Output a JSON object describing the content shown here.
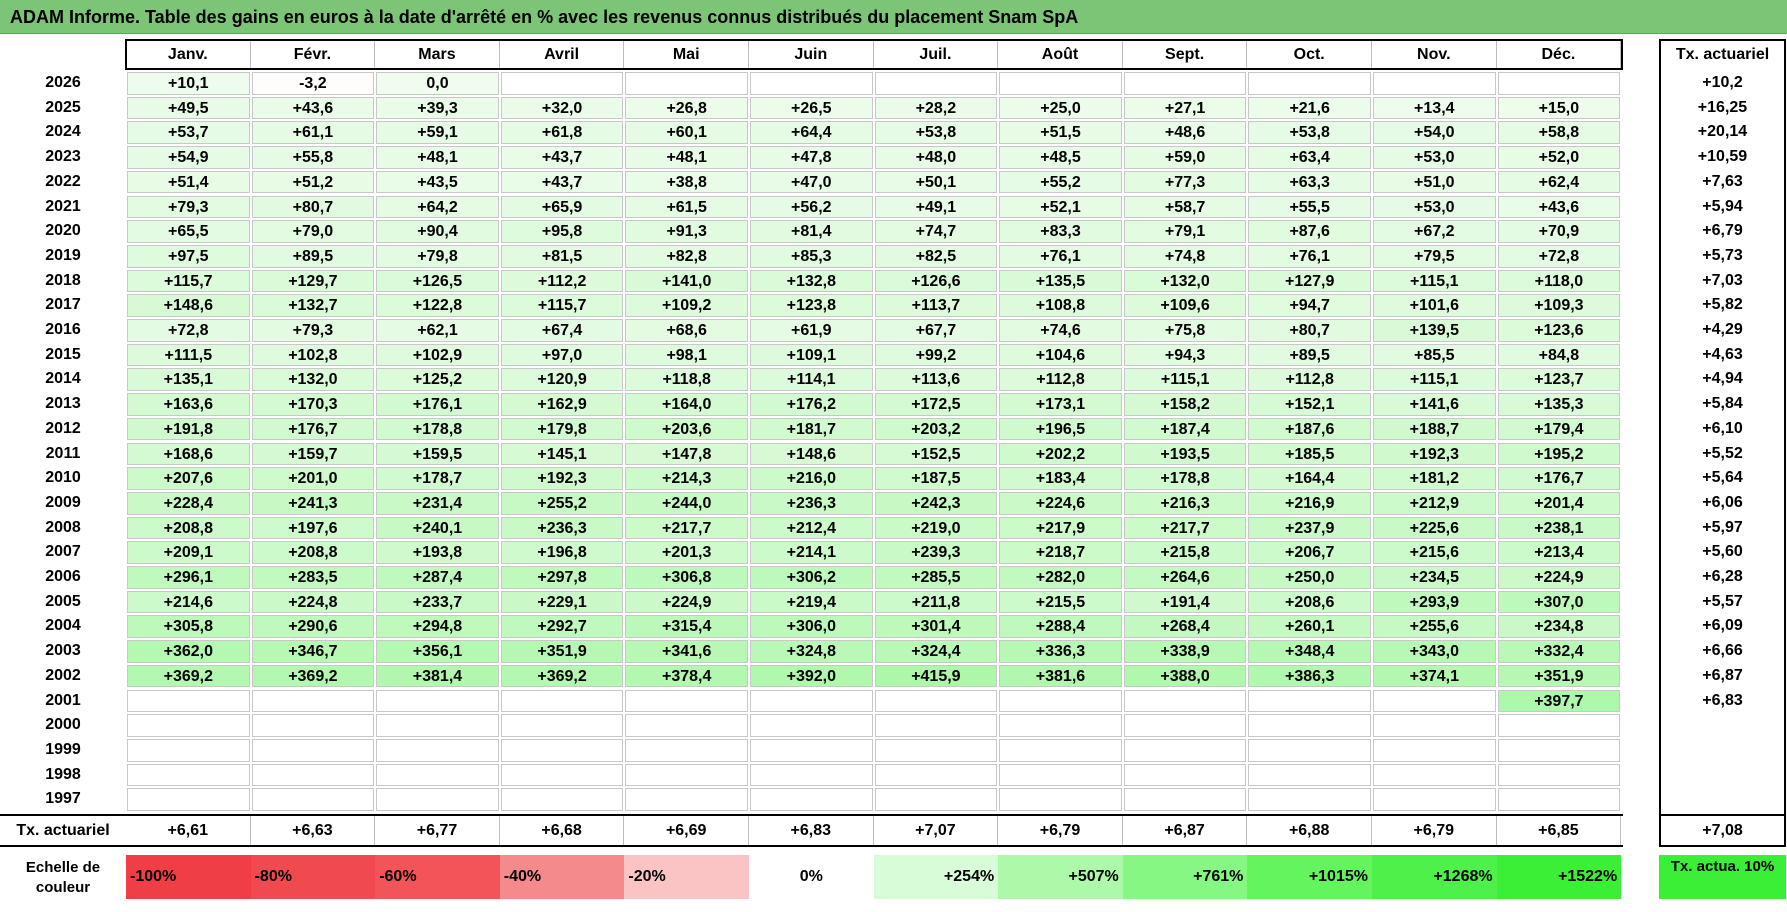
{
  "title": "ADAM Informe. Table des gains en euros à la date d'arrêté en % avec les revenus connus distribués du placement Snam SpA",
  "chart_data": {
    "type": "table",
    "months": [
      "Janv.",
      "Févr.",
      "Mars",
      "Avril",
      "Mai",
      "Juin",
      "Juil.",
      "Août",
      "Sept.",
      "Oct.",
      "Nov.",
      "Déc."
    ],
    "rate_header": "Tx. actuariel",
    "rows": [
      {
        "year": "2026",
        "values": [
          "+10,1",
          "-3,2",
          "0,0",
          "",
          "",
          "",
          "",
          "",
          "",
          "",
          "",
          ""
        ],
        "rate": "+10,2"
      },
      {
        "year": "2025",
        "values": [
          "+49,5",
          "+43,6",
          "+39,3",
          "+32,0",
          "+26,8",
          "+26,5",
          "+28,2",
          "+25,0",
          "+27,1",
          "+21,6",
          "+13,4",
          "+15,0"
        ],
        "rate": "+16,25"
      },
      {
        "year": "2024",
        "values": [
          "+53,7",
          "+61,1",
          "+59,1",
          "+61,8",
          "+60,1",
          "+64,4",
          "+53,8",
          "+51,5",
          "+48,6",
          "+53,8",
          "+54,0",
          "+58,8"
        ],
        "rate": "+20,14"
      },
      {
        "year": "2023",
        "values": [
          "+54,9",
          "+55,8",
          "+48,1",
          "+43,7",
          "+48,1",
          "+47,8",
          "+48,0",
          "+48,5",
          "+59,0",
          "+63,4",
          "+53,0",
          "+52,0"
        ],
        "rate": "+10,59"
      },
      {
        "year": "2022",
        "values": [
          "+51,4",
          "+51,2",
          "+43,5",
          "+43,7",
          "+38,8",
          "+47,0",
          "+50,1",
          "+55,2",
          "+77,3",
          "+63,3",
          "+51,0",
          "+62,4"
        ],
        "rate": "+7,63"
      },
      {
        "year": "2021",
        "values": [
          "+79,3",
          "+80,7",
          "+64,2",
          "+65,9",
          "+61,5",
          "+56,2",
          "+49,1",
          "+52,1",
          "+58,7",
          "+55,5",
          "+53,0",
          "+43,6"
        ],
        "rate": "+5,94"
      },
      {
        "year": "2020",
        "values": [
          "+65,5",
          "+79,0",
          "+90,4",
          "+95,8",
          "+91,3",
          "+81,4",
          "+74,7",
          "+83,3",
          "+79,1",
          "+87,6",
          "+67,2",
          "+70,9"
        ],
        "rate": "+6,79"
      },
      {
        "year": "2019",
        "values": [
          "+97,5",
          "+89,5",
          "+79,8",
          "+81,5",
          "+82,8",
          "+85,3",
          "+82,5",
          "+76,1",
          "+74,8",
          "+76,1",
          "+79,5",
          "+72,8"
        ],
        "rate": "+5,73"
      },
      {
        "year": "2018",
        "values": [
          "+115,7",
          "+129,7",
          "+126,5",
          "+112,2",
          "+141,0",
          "+132,8",
          "+126,6",
          "+135,5",
          "+132,0",
          "+127,9",
          "+115,1",
          "+118,0"
        ],
        "rate": "+7,03"
      },
      {
        "year": "2017",
        "values": [
          "+148,6",
          "+132,7",
          "+122,8",
          "+115,7",
          "+109,2",
          "+123,8",
          "+113,7",
          "+108,8",
          "+109,6",
          "+94,7",
          "+101,6",
          "+109,3"
        ],
        "rate": "+5,82"
      },
      {
        "year": "2016",
        "values": [
          "+72,8",
          "+79,3",
          "+62,1",
          "+67,4",
          "+68,6",
          "+61,9",
          "+67,7",
          "+74,6",
          "+75,8",
          "+80,7",
          "+139,5",
          "+123,6"
        ],
        "rate": "+4,29"
      },
      {
        "year": "2015",
        "values": [
          "+111,5",
          "+102,8",
          "+102,9",
          "+97,0",
          "+98,1",
          "+109,1",
          "+99,2",
          "+104,6",
          "+94,3",
          "+89,5",
          "+85,5",
          "+84,8"
        ],
        "rate": "+4,63"
      },
      {
        "year": "2014",
        "values": [
          "+135,1",
          "+132,0",
          "+125,2",
          "+120,9",
          "+118,8",
          "+114,1",
          "+113,6",
          "+112,8",
          "+115,1",
          "+112,8",
          "+115,1",
          "+123,7"
        ],
        "rate": "+4,94"
      },
      {
        "year": "2013",
        "values": [
          "+163,6",
          "+170,3",
          "+176,1",
          "+162,9",
          "+164,0",
          "+176,2",
          "+172,5",
          "+173,1",
          "+158,2",
          "+152,1",
          "+141,6",
          "+135,3"
        ],
        "rate": "+5,84"
      },
      {
        "year": "2012",
        "values": [
          "+191,8",
          "+176,7",
          "+178,8",
          "+179,8",
          "+203,6",
          "+181,7",
          "+203,2",
          "+196,5",
          "+187,4",
          "+187,6",
          "+188,7",
          "+179,4"
        ],
        "rate": "+6,10"
      },
      {
        "year": "2011",
        "values": [
          "+168,6",
          "+159,7",
          "+159,5",
          "+145,1",
          "+147,8",
          "+148,6",
          "+152,5",
          "+202,2",
          "+193,5",
          "+185,5",
          "+192,3",
          "+195,2"
        ],
        "rate": "+5,52"
      },
      {
        "year": "2010",
        "values": [
          "+207,6",
          "+201,0",
          "+178,7",
          "+192,3",
          "+214,3",
          "+216,0",
          "+187,5",
          "+183,4",
          "+178,8",
          "+164,4",
          "+181,2",
          "+176,7"
        ],
        "rate": "+5,64"
      },
      {
        "year": "2009",
        "values": [
          "+228,4",
          "+241,3",
          "+231,4",
          "+255,2",
          "+244,0",
          "+236,3",
          "+242,3",
          "+224,6",
          "+216,3",
          "+216,9",
          "+212,9",
          "+201,4"
        ],
        "rate": "+6,06"
      },
      {
        "year": "2008",
        "values": [
          "+208,8",
          "+197,6",
          "+240,1",
          "+236,3",
          "+217,7",
          "+212,4",
          "+219,0",
          "+217,9",
          "+217,7",
          "+237,9",
          "+225,6",
          "+238,1"
        ],
        "rate": "+5,97"
      },
      {
        "year": "2007",
        "values": [
          "+209,1",
          "+208,8",
          "+193,8",
          "+196,8",
          "+201,3",
          "+214,1",
          "+239,3",
          "+218,7",
          "+215,8",
          "+206,7",
          "+215,6",
          "+213,4"
        ],
        "rate": "+5,60"
      },
      {
        "year": "2006",
        "values": [
          "+296,1",
          "+283,5",
          "+287,4",
          "+297,8",
          "+306,8",
          "+306,2",
          "+285,5",
          "+282,0",
          "+264,6",
          "+250,0",
          "+234,5",
          "+224,9"
        ],
        "rate": "+6,28"
      },
      {
        "year": "2005",
        "values": [
          "+214,6",
          "+224,8",
          "+233,7",
          "+229,1",
          "+224,9",
          "+219,4",
          "+211,8",
          "+215,5",
          "+191,4",
          "+208,6",
          "+293,9",
          "+307,0"
        ],
        "rate": "+5,57"
      },
      {
        "year": "2004",
        "values": [
          "+305,8",
          "+290,6",
          "+294,8",
          "+292,7",
          "+315,4",
          "+306,0",
          "+301,4",
          "+288,4",
          "+268,4",
          "+260,1",
          "+255,6",
          "+234,8"
        ],
        "rate": "+6,09"
      },
      {
        "year": "2003",
        "values": [
          "+362,0",
          "+346,7",
          "+356,1",
          "+351,9",
          "+341,6",
          "+324,8",
          "+324,4",
          "+336,3",
          "+338,9",
          "+348,4",
          "+343,0",
          "+332,4"
        ],
        "rate": "+6,66"
      },
      {
        "year": "2002",
        "values": [
          "+369,2",
          "+369,2",
          "+381,4",
          "+369,2",
          "+378,4",
          "+392,0",
          "+415,9",
          "+381,6",
          "+388,0",
          "+386,3",
          "+374,1",
          "+351,9"
        ],
        "rate": "+6,87"
      },
      {
        "year": "2001",
        "values": [
          "",
          "",
          "",
          "",
          "",
          "",
          "",
          "",
          "",
          "",
          "",
          "+397,7"
        ],
        "rate": "+6,83"
      },
      {
        "year": "2000",
        "values": [
          "",
          "",
          "",
          "",
          "",
          "",
          "",
          "",
          "",
          "",
          "",
          ""
        ],
        "rate": ""
      },
      {
        "year": "1999",
        "values": [
          "",
          "",
          "",
          "",
          "",
          "",
          "",
          "",
          "",
          "",
          "",
          ""
        ],
        "rate": ""
      },
      {
        "year": "1998",
        "values": [
          "",
          "",
          "",
          "",
          "",
          "",
          "",
          "",
          "",
          "",
          "",
          ""
        ],
        "rate": ""
      },
      {
        "year": "1997",
        "values": [
          "",
          "",
          "",
          "",
          "",
          "",
          "",
          "",
          "",
          "",
          "",
          ""
        ],
        "rate": ""
      }
    ],
    "footer": {
      "label": "Tx. actuariel",
      "values": [
        "+6,61",
        "+6,63",
        "+6,77",
        "+6,68",
        "+6,69",
        "+6,83",
        "+7,07",
        "+6,79",
        "+6,87",
        "+6,88",
        "+6,79",
        "+6,85"
      ],
      "rate": "+7,08"
    },
    "color_scale": {
      "label": "Echelle de couleur",
      "steps": [
        {
          "text": "-100%",
          "color": "#ef3e45"
        },
        {
          "text": "-80%",
          "color": "#f04a50"
        },
        {
          "text": "-60%",
          "color": "#f3545a"
        },
        {
          "text": "-40%",
          "color": "#f58a8d"
        },
        {
          "text": "-20%",
          "color": "#fac3c4"
        },
        {
          "text": "0%",
          "color": "#ffffff"
        },
        {
          "text": "+254%",
          "color": "#d8fcd8"
        },
        {
          "text": "+507%",
          "color": "#acfaa9"
        },
        {
          "text": "+761%",
          "color": "#85f782"
        },
        {
          "text": "+1015%",
          "color": "#63f45e"
        },
        {
          "text": "+1268%",
          "color": "#4ef14a"
        },
        {
          "text": "+1522%",
          "color": "#3bee36"
        }
      ],
      "rate_swatch": {
        "text": "Tx. actua. 10%",
        "color": "#3bee36"
      }
    }
  }
}
